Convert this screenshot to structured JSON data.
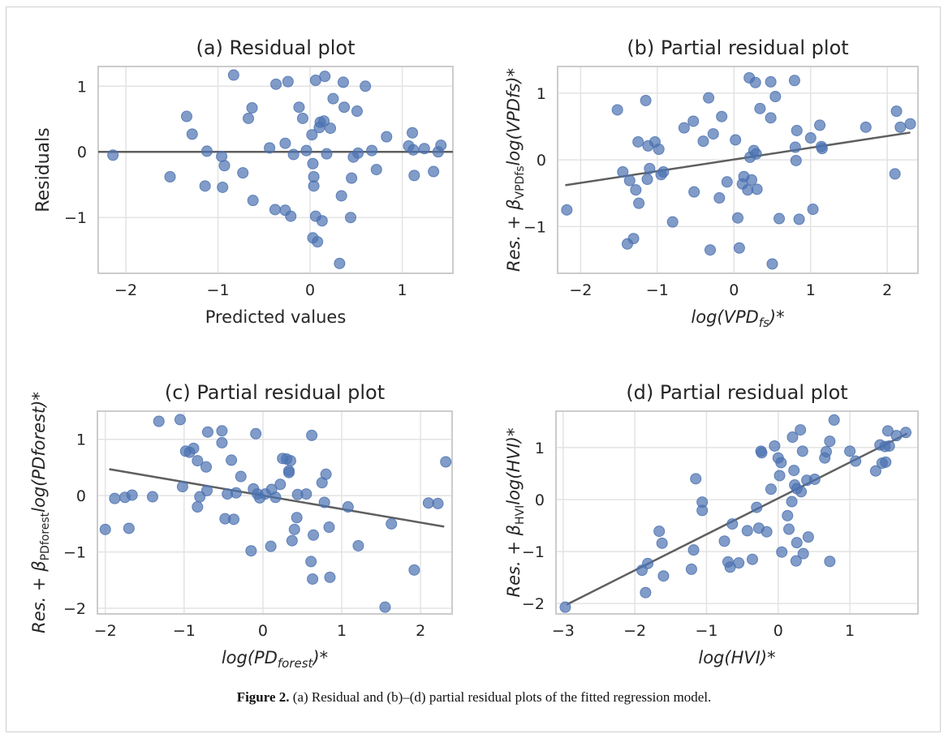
{
  "figure": {
    "caption_label": "Figure 2.",
    "caption_text": " (a) Residual and (b)–(d) partial residual plots of the fitted regression model."
  },
  "colors": {
    "point": "#4c72b0",
    "line": "#5f5f5f",
    "grid": "#e3e3e3",
    "spine": "#cccccc",
    "text": "#262626"
  },
  "chart_data": [
    {
      "id": "a",
      "type": "scatter",
      "title": "(a) Residual plot",
      "xlabel": "Predicted values",
      "ylabel": "Residuals",
      "xlim": [
        -2.3,
        1.55
      ],
      "ylim": [
        -1.85,
        1.3
      ],
      "xticks": [
        -2,
        -1,
        0,
        1
      ],
      "yticks": [
        -1,
        0,
        1
      ],
      "grid": true,
      "fit_line": {
        "x": [
          -2.3,
          1.55
        ],
        "y": [
          0,
          0
        ]
      },
      "points": [
        [
          -2.14,
          -0.05
        ],
        [
          -1.52,
          -0.38
        ],
        [
          -1.34,
          0.54
        ],
        [
          -1.28,
          0.27
        ],
        [
          -1.14,
          -0.52
        ],
        [
          -1.12,
          0.01
        ],
        [
          -0.96,
          -0.07
        ],
        [
          -0.95,
          -0.54
        ],
        [
          -0.93,
          -0.21
        ],
        [
          -0.83,
          1.17
        ],
        [
          -0.73,
          -0.32
        ],
        [
          -0.67,
          0.51
        ],
        [
          -0.63,
          0.67
        ],
        [
          -0.62,
          -0.74
        ],
        [
          -0.44,
          0.06
        ],
        [
          -0.38,
          -0.88
        ],
        [
          -0.37,
          1.03
        ],
        [
          -0.27,
          0.13
        ],
        [
          -0.27,
          -0.89
        ],
        [
          -0.24,
          1.07
        ],
        [
          -0.21,
          -0.98
        ],
        [
          -0.18,
          -0.04
        ],
        [
          -0.12,
          0.68
        ],
        [
          -0.08,
          0.51
        ],
        [
          -0.04,
          0.02
        ],
        [
          0.02,
          0.26
        ],
        [
          0.03,
          -0.18
        ],
        [
          0.03,
          -1.31
        ],
        [
          0.04,
          -0.38
        ],
        [
          0.04,
          -0.52
        ],
        [
          0.06,
          1.09
        ],
        [
          0.06,
          -0.98
        ],
        [
          0.08,
          -1.37
        ],
        [
          0.1,
          0.37
        ],
        [
          0.11,
          0.45
        ],
        [
          0.13,
          -1.05
        ],
        [
          0.15,
          0.47
        ],
        [
          0.16,
          1.15
        ],
        [
          0.18,
          -0.03
        ],
        [
          0.22,
          0.36
        ],
        [
          0.25,
          0.81
        ],
        [
          0.32,
          -1.7
        ],
        [
          0.34,
          -0.67
        ],
        [
          0.36,
          1.06
        ],
        [
          0.37,
          0.68
        ],
        [
          0.44,
          -1.0
        ],
        [
          0.45,
          -0.4
        ],
        [
          0.47,
          -0.08
        ],
        [
          0.51,
          0.62
        ],
        [
          0.52,
          -0.02
        ],
        [
          0.6,
          1.0
        ],
        [
          0.67,
          0.02
        ],
        [
          0.72,
          -0.27
        ],
        [
          0.83,
          0.23
        ],
        [
          1.07,
          0.09
        ],
        [
          1.11,
          0.29
        ],
        [
          1.12,
          0.03
        ],
        [
          1.13,
          -0.36
        ],
        [
          1.24,
          0.05
        ],
        [
          1.34,
          -0.3
        ],
        [
          1.39,
          0.0
        ],
        [
          1.42,
          0.1
        ]
      ]
    },
    {
      "id": "b",
      "type": "scatter",
      "title": "(b) Partial residual plot",
      "xlabel_main": "log(VPD",
      "xlabel_sub": "fs",
      "xlabel_end": ")*",
      "ylabel_main": "Res. + β",
      "ylabel_sub": "VPDfs",
      "ylabel_end": "log(VPDfs)*",
      "xlim": [
        -2.3,
        2.4
      ],
      "ylim": [
        -1.7,
        1.4
      ],
      "xticks": [
        -2,
        -1,
        0,
        1,
        2
      ],
      "yticks": [
        -1,
        0,
        1
      ],
      "grid": true,
      "fit_line": {
        "x": [
          -2.2,
          2.3
        ],
        "y": [
          -0.38,
          0.41
        ]
      },
      "points": [
        [
          -2.18,
          -0.75
        ],
        [
          -1.52,
          0.75
        ],
        [
          -1.45,
          -0.18
        ],
        [
          -1.39,
          -1.26
        ],
        [
          -1.36,
          -0.31
        ],
        [
          -1.31,
          -1.18
        ],
        [
          -1.28,
          -0.45
        ],
        [
          -1.25,
          0.27
        ],
        [
          -1.24,
          -0.65
        ],
        [
          -1.15,
          0.89
        ],
        [
          -1.13,
          -0.29
        ],
        [
          -1.12,
          0.21
        ],
        [
          -1.1,
          -0.13
        ],
        [
          -1.03,
          0.27
        ],
        [
          -0.98,
          0.16
        ],
        [
          -0.95,
          -0.22
        ],
        [
          -0.92,
          -0.18
        ],
        [
          -0.8,
          -0.93
        ],
        [
          -0.65,
          0.48
        ],
        [
          -0.53,
          0.58
        ],
        [
          -0.52,
          -0.48
        ],
        [
          -0.4,
          0.28
        ],
        [
          -0.33,
          0.93
        ],
        [
          -0.31,
          -1.35
        ],
        [
          -0.27,
          0.39
        ],
        [
          -0.19,
          -0.57
        ],
        [
          -0.16,
          0.65
        ],
        [
          -0.09,
          -0.33
        ],
        [
          0.02,
          0.3
        ],
        [
          0.05,
          -0.87
        ],
        [
          0.07,
          -1.32
        ],
        [
          0.11,
          -0.36
        ],
        [
          0.13,
          -0.25
        ],
        [
          0.18,
          -0.45
        ],
        [
          0.2,
          1.23
        ],
        [
          0.21,
          0.04
        ],
        [
          0.23,
          -0.3
        ],
        [
          0.26,
          0.14
        ],
        [
          0.28,
          1.16
        ],
        [
          0.29,
          0.09
        ],
        [
          0.3,
          -0.44
        ],
        [
          0.34,
          0.77
        ],
        [
          0.48,
          0.63
        ],
        [
          0.48,
          1.17
        ],
        [
          0.5,
          -1.56
        ],
        [
          0.54,
          0.95
        ],
        [
          0.59,
          -0.88
        ],
        [
          0.79,
          1.19
        ],
        [
          0.8,
          0.19
        ],
        [
          0.81,
          -0.01
        ],
        [
          0.82,
          0.44
        ],
        [
          0.85,
          -0.89
        ],
        [
          1.0,
          0.33
        ],
        [
          1.03,
          -0.74
        ],
        [
          1.12,
          0.52
        ],
        [
          1.14,
          0.2
        ],
        [
          1.15,
          0.17
        ],
        [
          1.72,
          0.49
        ],
        [
          2.1,
          -0.21
        ],
        [
          2.12,
          0.73
        ],
        [
          2.17,
          0.49
        ],
        [
          2.3,
          0.54
        ]
      ]
    },
    {
      "id": "c",
      "type": "scatter",
      "title": "(c) Partial residual plot",
      "xlabel_main": "log(PD",
      "xlabel_sub": "forest",
      "xlabel_end": ")*",
      "ylabel_main": "Res. + β",
      "ylabel_sub": "PDforest",
      "ylabel_end": "log(PDforest)*",
      "xlim": [
        -2.1,
        2.4
      ],
      "ylim": [
        -2.1,
        1.5
      ],
      "xticks": [
        -2,
        -1,
        0,
        1,
        2
      ],
      "yticks": [
        -2,
        -1,
        0,
        1
      ],
      "grid": true,
      "fit_line": {
        "x": [
          -1.95,
          2.3
        ],
        "y": [
          0.47,
          -0.55
        ]
      },
      "points": [
        [
          -2.0,
          -0.6
        ],
        [
          -1.88,
          -0.05
        ],
        [
          -1.75,
          -0.03
        ],
        [
          -1.7,
          -0.58
        ],
        [
          -1.66,
          0.01
        ],
        [
          -1.4,
          -0.02
        ],
        [
          -1.32,
          1.32
        ],
        [
          -1.05,
          1.35
        ],
        [
          -1.02,
          0.16
        ],
        [
          -0.98,
          0.79
        ],
        [
          -0.93,
          0.77
        ],
        [
          -0.88,
          0.84
        ],
        [
          -0.83,
          0.62
        ],
        [
          -0.83,
          -0.2
        ],
        [
          -0.8,
          -0.02
        ],
        [
          -0.72,
          0.51
        ],
        [
          -0.7,
          1.13
        ],
        [
          -0.71,
          0.09
        ],
        [
          -0.52,
          1.15
        ],
        [
          -0.52,
          0.94
        ],
        [
          -0.48,
          -0.41
        ],
        [
          -0.45,
          0.03
        ],
        [
          -0.4,
          0.63
        ],
        [
          -0.37,
          -0.42
        ],
        [
          -0.34,
          0.05
        ],
        [
          -0.28,
          0.34
        ],
        [
          -0.15,
          -0.98
        ],
        [
          -0.12,
          0.12
        ],
        [
          -0.09,
          1.1
        ],
        [
          -0.07,
          0.03
        ],
        [
          -0.04,
          -0.04
        ],
        [
          0.03,
          0.03
        ],
        [
          0.1,
          -0.9
        ],
        [
          0.11,
          0.11
        ],
        [
          0.16,
          -0.03
        ],
        [
          0.22,
          0.2
        ],
        [
          0.25,
          0.66
        ],
        [
          0.3,
          0.65
        ],
        [
          0.33,
          0.44
        ],
        [
          0.33,
          0.41
        ],
        [
          0.35,
          0.62
        ],
        [
          0.37,
          -0.8
        ],
        [
          0.4,
          -0.6
        ],
        [
          0.43,
          -0.39
        ],
        [
          0.44,
          0.02
        ],
        [
          0.55,
          0.03
        ],
        [
          0.61,
          -1.17
        ],
        [
          0.62,
          1.07
        ],
        [
          0.63,
          -1.48
        ],
        [
          0.64,
          -0.7
        ],
        [
          0.75,
          0.23
        ],
        [
          0.78,
          -0.12
        ],
        [
          0.8,
          0.38
        ],
        [
          0.84,
          -0.56
        ],
        [
          0.85,
          -1.45
        ],
        [
          1.08,
          -0.2
        ],
        [
          1.21,
          -0.89
        ],
        [
          1.55,
          -1.98
        ],
        [
          1.63,
          -0.5
        ],
        [
          1.92,
          -1.32
        ],
        [
          2.1,
          -0.13
        ],
        [
          2.22,
          -0.14
        ],
        [
          2.32,
          0.6
        ]
      ]
    },
    {
      "id": "d",
      "type": "scatter",
      "title": "(d) Partial residual plot",
      "xlabel_main": "log(HVI)*",
      "ylabel_main": "Res. + β",
      "ylabel_sub": "HVI",
      "ylabel_end": "log(HVI)*",
      "xlim": [
        -3.1,
        1.95
      ],
      "ylim": [
        -2.2,
        1.7
      ],
      "xticks": [
        -3,
        -2,
        -1,
        0,
        1
      ],
      "yticks": [
        -2,
        -1,
        0,
        1
      ],
      "grid": true,
      "fit_line": {
        "x": [
          -2.95,
          1.8
        ],
        "y": [
          -2.02,
          1.27
        ]
      },
      "points": [
        [
          -2.97,
          -2.07
        ],
        [
          -1.9,
          -1.36
        ],
        [
          -1.85,
          -1.79
        ],
        [
          -1.82,
          -1.23
        ],
        [
          -1.66,
          -0.61
        ],
        [
          -1.62,
          -0.84
        ],
        [
          -1.6,
          -1.47
        ],
        [
          -1.21,
          -1.34
        ],
        [
          -1.18,
          -0.97
        ],
        [
          -1.15,
          0.4
        ],
        [
          -1.06,
          -0.05
        ],
        [
          -1.06,
          -0.21
        ],
        [
          -0.75,
          -0.8
        ],
        [
          -0.7,
          -1.2
        ],
        [
          -0.67,
          -1.3
        ],
        [
          -0.64,
          -0.47
        ],
        [
          -0.55,
          -1.22
        ],
        [
          -0.43,
          -0.6
        ],
        [
          -0.36,
          -1.15
        ],
        [
          -0.3,
          -0.15
        ],
        [
          -0.27,
          -0.55
        ],
        [
          -0.24,
          0.93
        ],
        [
          -0.23,
          0.9
        ],
        [
          -0.16,
          -0.62
        ],
        [
          -0.1,
          0.2
        ],
        [
          -0.05,
          1.03
        ],
        [
          0.0,
          0.8
        ],
        [
          0.02,
          0.46
        ],
        [
          0.04,
          0.71
        ],
        [
          0.05,
          -1.01
        ],
        [
          0.13,
          -0.31
        ],
        [
          0.15,
          -0.57
        ],
        [
          0.19,
          -0.04
        ],
        [
          0.2,
          1.2
        ],
        [
          0.22,
          0.56
        ],
        [
          0.23,
          0.28
        ],
        [
          0.25,
          -1.18
        ],
        [
          0.26,
          0.21
        ],
        [
          0.26,
          -0.83
        ],
        [
          0.31,
          1.34
        ],
        [
          0.32,
          0.15
        ],
        [
          0.34,
          0.93
        ],
        [
          0.35,
          -1.04
        ],
        [
          0.4,
          0.37
        ],
        [
          0.42,
          -0.72
        ],
        [
          0.51,
          0.39
        ],
        [
          0.65,
          0.8
        ],
        [
          0.67,
          0.92
        ],
        [
          0.72,
          1.12
        ],
        [
          0.72,
          -1.19
        ],
        [
          0.78,
          1.53
        ],
        [
          1.0,
          0.93
        ],
        [
          1.08,
          0.74
        ],
        [
          1.36,
          0.55
        ],
        [
          1.42,
          1.05
        ],
        [
          1.45,
          0.7
        ],
        [
          1.49,
          1.02
        ],
        [
          1.5,
          0.72
        ],
        [
          1.53,
          1.32
        ],
        [
          1.55,
          1.03
        ],
        [
          1.65,
          1.23
        ],
        [
          1.78,
          1.29
        ]
      ]
    }
  ]
}
